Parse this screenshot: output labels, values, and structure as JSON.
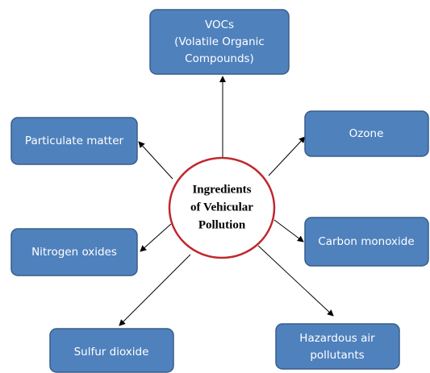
{
  "center": {
    "lines": [
      "Ingredients",
      "of Vehicular",
      "Pollution"
    ]
  },
  "nodes": [
    {
      "lines": [
        "VOCs",
        "(Volatile Organic",
        "Compounds)"
      ]
    },
    {
      "lines": [
        "Particulate matter"
      ]
    },
    {
      "lines": [
        "Ozone"
      ]
    },
    {
      "lines": [
        "Nitrogen oxides"
      ]
    },
    {
      "lines": [
        "Carbon monoxide"
      ]
    },
    {
      "lines": [
        "Sulfur dioxide"
      ]
    },
    {
      "lines": [
        "Hazardous air",
        "pollutants"
      ]
    }
  ]
}
